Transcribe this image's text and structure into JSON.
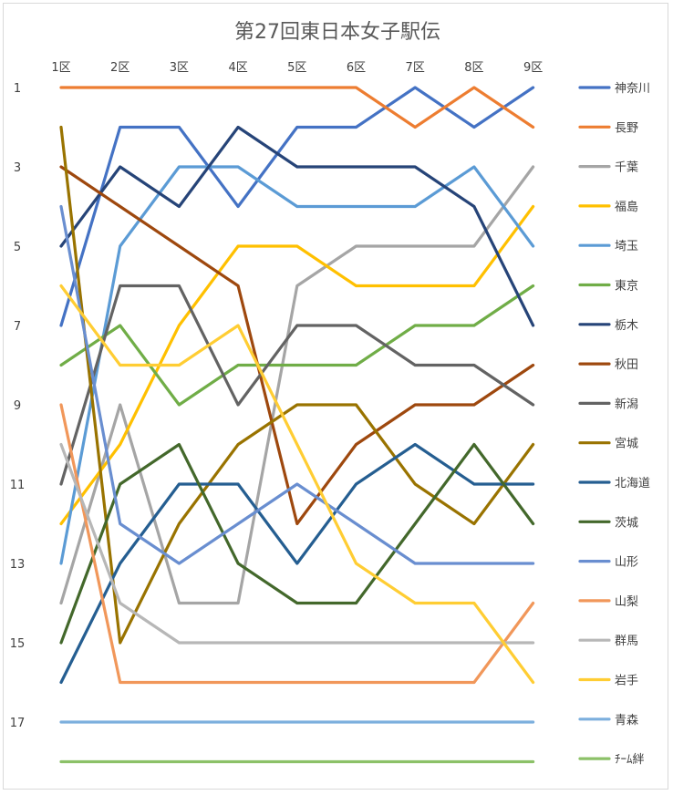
{
  "chart_data": {
    "type": "line",
    "title": "第27回東日本女子駅伝",
    "categories": [
      "1区",
      "2区",
      "3区",
      "4区",
      "5区",
      "6区",
      "7区",
      "8区",
      "9区"
    ],
    "y_ticks": [
      1,
      3,
      5,
      7,
      9,
      11,
      13,
      15,
      17
    ],
    "ylim": [
      1,
      18
    ],
    "y_inverted": true,
    "grid": false,
    "legend_position": "right",
    "series": [
      {
        "name": "神奈川",
        "color": "#4472C4",
        "values": [
          7,
          2,
          2,
          4,
          2,
          2,
          1,
          2,
          1
        ]
      },
      {
        "name": "長野",
        "color": "#ED7D31",
        "values": [
          1,
          1,
          1,
          1,
          1,
          1,
          2,
          1,
          2
        ]
      },
      {
        "name": "千葉",
        "color": "#A5A5A5",
        "values": [
          14,
          9,
          14,
          14,
          6,
          5,
          5,
          5,
          3
        ]
      },
      {
        "name": "福島",
        "color": "#FFC000",
        "values": [
          12,
          10,
          7,
          5,
          5,
          6,
          6,
          6,
          4
        ]
      },
      {
        "name": "埼玉",
        "color": "#5B9BD5",
        "values": [
          13,
          5,
          3,
          3,
          4,
          4,
          4,
          3,
          5
        ]
      },
      {
        "name": "東京",
        "color": "#70AD47",
        "values": [
          8,
          7,
          9,
          8,
          8,
          8,
          7,
          7,
          6
        ]
      },
      {
        "name": "栃木",
        "color": "#264478",
        "values": [
          5,
          3,
          4,
          2,
          3,
          3,
          3,
          4,
          7
        ]
      },
      {
        "name": "秋田",
        "color": "#9E480E",
        "values": [
          3,
          4,
          5,
          6,
          12,
          10,
          9,
          9,
          8
        ]
      },
      {
        "name": "新潟",
        "color": "#636363",
        "values": [
          11,
          6,
          6,
          9,
          7,
          7,
          8,
          8,
          9
        ]
      },
      {
        "name": "宮城",
        "color": "#997300",
        "values": [
          2,
          15,
          12,
          10,
          9,
          9,
          11,
          12,
          10
        ]
      },
      {
        "name": "北海道",
        "color": "#255E91",
        "values": [
          16,
          13,
          11,
          11,
          13,
          11,
          10,
          11,
          11
        ]
      },
      {
        "name": "茨城",
        "color": "#43682B",
        "values": [
          15,
          11,
          10,
          13,
          14,
          14,
          12,
          10,
          12
        ]
      },
      {
        "name": "山形",
        "color": "#698ED0",
        "values": [
          4,
          12,
          13,
          12,
          11,
          12,
          13,
          13,
          13
        ]
      },
      {
        "name": "山梨",
        "color": "#F1975A",
        "values": [
          9,
          16,
          16,
          16,
          16,
          16,
          16,
          16,
          14
        ]
      },
      {
        "name": "群馬",
        "color": "#B7B7B7",
        "values": [
          10,
          14,
          15,
          15,
          15,
          15,
          15,
          15,
          15
        ]
      },
      {
        "name": "岩手",
        "color": "#FFCD33",
        "values": [
          6,
          8,
          8,
          7,
          10,
          13,
          14,
          14,
          16
        ]
      },
      {
        "name": "青森",
        "color": "#7CAFDD",
        "values": [
          17,
          17,
          17,
          17,
          17,
          17,
          17,
          17,
          17
        ]
      },
      {
        "name": "ﾁｰﾑ絆",
        "color": "#8CC168",
        "values": [
          18,
          18,
          18,
          18,
          18,
          18,
          18,
          18,
          18
        ]
      }
    ]
  }
}
